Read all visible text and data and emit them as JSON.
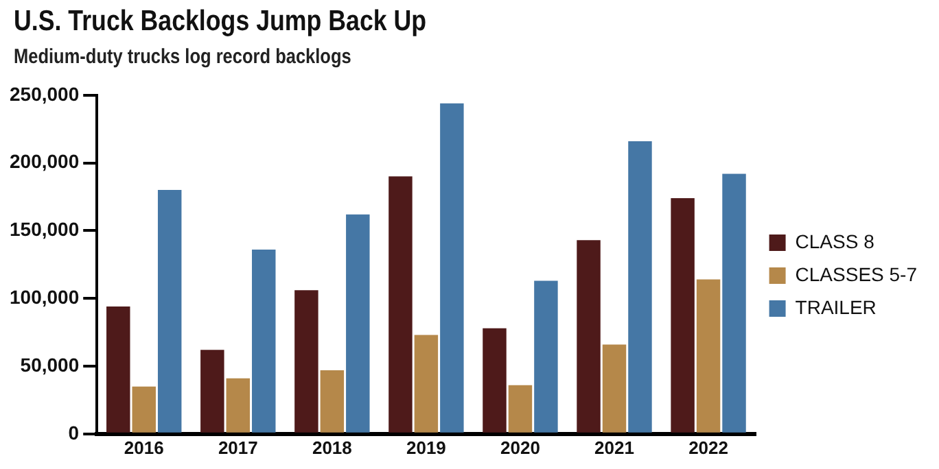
{
  "chart_data": {
    "type": "bar",
    "title": "U.S. Truck Backlogs Jump Back Up",
    "subtitle": "Medium-duty trucks log record backlogs",
    "categories": [
      "2016",
      "2017",
      "2018",
      "2019",
      "2020",
      "2021",
      "2022"
    ],
    "series": [
      {
        "name": "CLASS 8",
        "color": "#4e1a1a",
        "values": [
          94000,
          62000,
          106000,
          190000,
          78000,
          143000,
          174000
        ]
      },
      {
        "name": "CLASSES 5-7",
        "color": "#b5884a",
        "values": [
          35000,
          41000,
          47000,
          73000,
          36000,
          66000,
          114000
        ]
      },
      {
        "name": "TRAILER",
        "color": "#4577a5",
        "values": [
          180000,
          136000,
          162000,
          244000,
          113000,
          216000,
          192000
        ]
      }
    ],
    "ylim": [
      0,
      250000
    ],
    "yticks": [
      0,
      {
        "value": 50000,
        "label": "50,000"
      },
      {
        "value": 100000,
        "label": "100,000"
      },
      {
        "value": 150000,
        "label": "150,000"
      },
      {
        "value": 200000,
        "label": "200,000"
      },
      {
        "value": 250000,
        "label": "250,000"
      }
    ],
    "grid": false,
    "legend": "right"
  }
}
